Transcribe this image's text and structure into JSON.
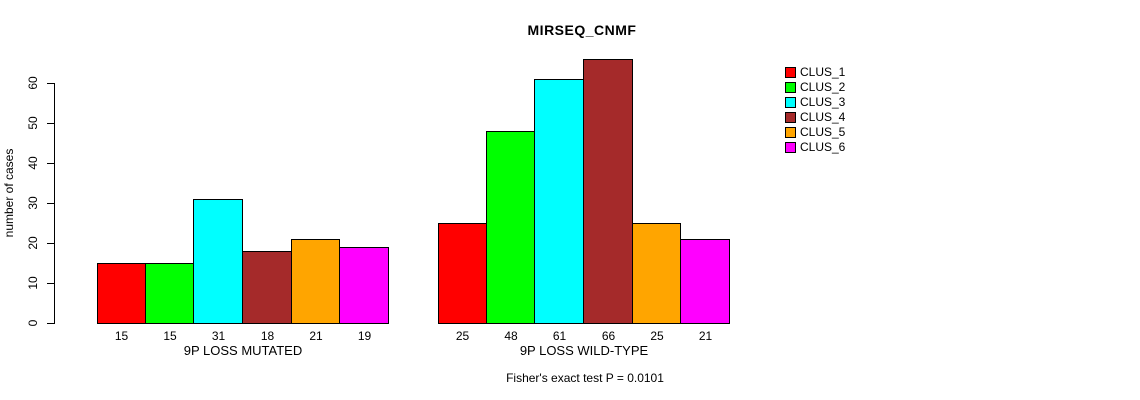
{
  "chart_data": {
    "type": "bar",
    "title": "MIRSEQ_CNMF",
    "ylabel": "number of cases",
    "xlabel": "",
    "footnote": "Fisher's exact test P = 0.0101",
    "yticks": [
      0,
      10,
      20,
      30,
      40,
      50,
      60
    ],
    "ylim": [
      0,
      66
    ],
    "grid": false,
    "legend_position": "right",
    "background": "#FFFFFF",
    "bar_border_color": "#000000",
    "series": [
      {
        "name": "CLUS_1",
        "color": "#FF0000"
      },
      {
        "name": "CLUS_2",
        "color": "#00FF00"
      },
      {
        "name": "CLUS_3",
        "color": "#00FFFF"
      },
      {
        "name": "CLUS_4",
        "color": "#A52A2A"
      },
      {
        "name": "CLUS_5",
        "color": "#FFA500"
      },
      {
        "name": "CLUS_6",
        "color": "#FF00FF"
      }
    ],
    "groups": [
      {
        "label": "9P LOSS MUTATED",
        "values": [
          15,
          15,
          31,
          18,
          21,
          19
        ]
      },
      {
        "label": "9P LOSS WILD-TYPE",
        "values": [
          25,
          48,
          61,
          66,
          25,
          21
        ]
      }
    ]
  }
}
